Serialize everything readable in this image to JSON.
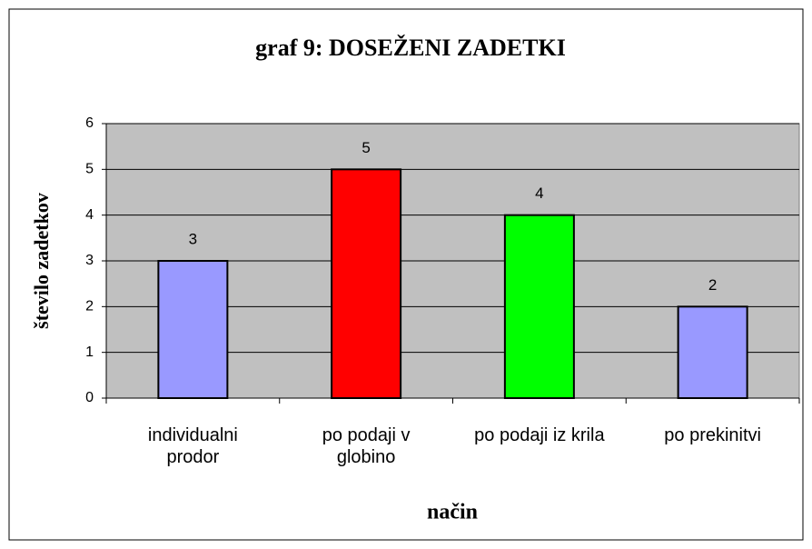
{
  "chart_data": {
    "type": "bar",
    "title": "graf 9: DOSEŽENI ZADETKI",
    "categories": [
      "individualni prodor",
      "po podaji v globino",
      "po podaji iz krila",
      "po prekinitvi"
    ],
    "values": [
      3,
      5,
      4,
      2
    ],
    "colors": [
      "#9999ff",
      "#ff0000",
      "#00ff00",
      "#9999ff"
    ],
    "x_label": "način",
    "y_label": "število zadetkov",
    "ylim": [
      0,
      6
    ],
    "yticks": [
      0,
      1,
      2,
      3,
      4,
      5,
      6
    ],
    "grid": true
  }
}
